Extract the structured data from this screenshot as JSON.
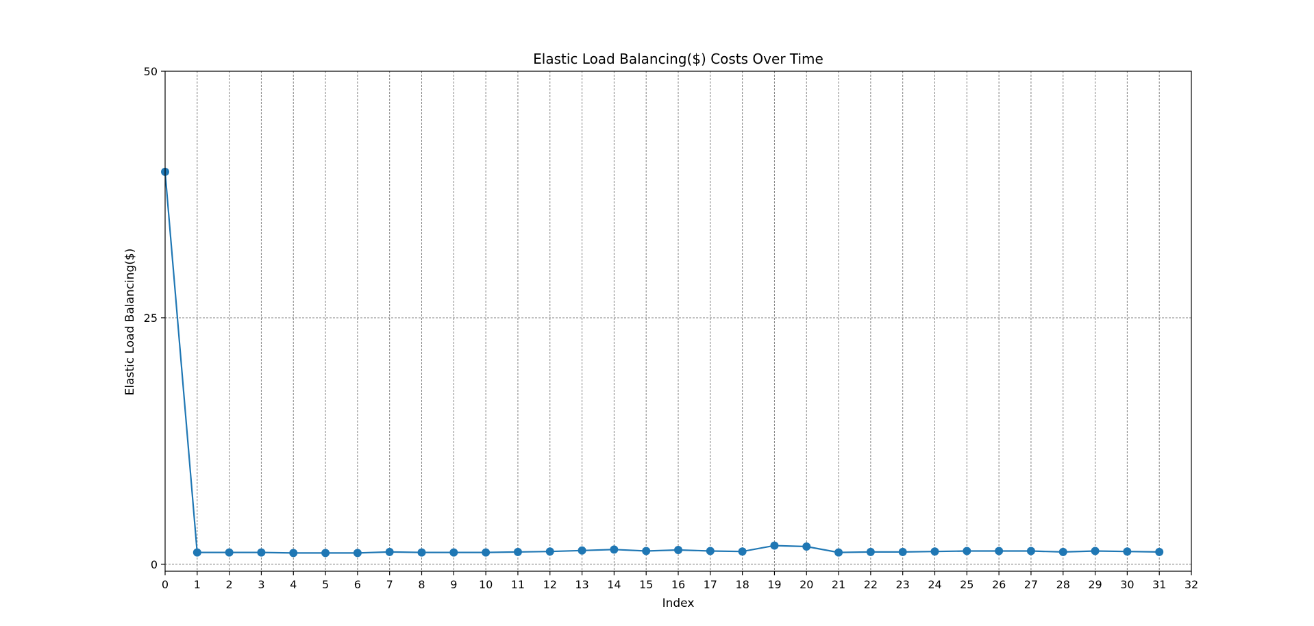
{
  "chart_data": {
    "type": "line",
    "title": "Elastic Load Balancing($) Costs Over Time",
    "xlabel": "Index",
    "ylabel": "Elastic Load Balancing($)",
    "xlim": [
      0,
      32
    ],
    "ylim": [
      -0.7,
      50
    ],
    "x_ticks": [
      0,
      1,
      2,
      3,
      4,
      5,
      6,
      7,
      8,
      9,
      10,
      11,
      12,
      13,
      14,
      15,
      16,
      17,
      18,
      19,
      20,
      21,
      22,
      23,
      24,
      25,
      26,
      27,
      28,
      29,
      30,
      31,
      32
    ],
    "y_ticks": [
      0,
      25,
      50
    ],
    "grid": true,
    "legend": "none",
    "colors": {
      "series": "#1f77b4"
    },
    "series": [
      {
        "x": [
          0,
          1,
          2,
          3,
          4,
          5,
          6,
          7,
          8,
          9,
          10,
          11,
          12,
          13,
          14,
          15,
          16,
          17,
          18,
          19,
          20,
          21,
          22,
          23,
          24,
          25,
          26,
          27,
          28,
          29,
          30,
          31
        ],
        "values": [
          39.8,
          1.2,
          1.2,
          1.2,
          1.15,
          1.15,
          1.15,
          1.25,
          1.2,
          1.2,
          1.2,
          1.25,
          1.3,
          1.4,
          1.5,
          1.35,
          1.45,
          1.35,
          1.3,
          1.9,
          1.8,
          1.2,
          1.25,
          1.25,
          1.3,
          1.35,
          1.35,
          1.35,
          1.25,
          1.35,
          1.3,
          1.25
        ]
      }
    ]
  }
}
